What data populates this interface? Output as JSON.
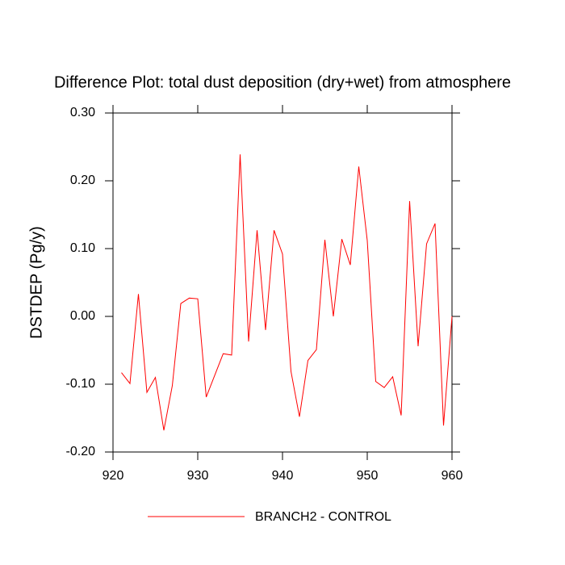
{
  "chart_data": {
    "type": "line",
    "title": "Difference Plot: total dust deposition (dry+wet) from atmosphere",
    "y_label": "DSTDEP  (Pg/y)",
    "x": [
      921,
      922,
      923,
      924,
      925,
      926,
      927,
      928,
      929,
      930,
      931,
      932,
      933,
      934,
      935,
      936,
      937,
      938,
      939,
      940,
      941,
      942,
      943,
      944,
      945,
      946,
      947,
      948,
      949,
      950,
      951,
      952,
      953,
      954,
      955,
      956,
      957,
      958,
      959,
      960
    ],
    "series": [
      {
        "name": "BRANCH2 - CONTROL",
        "color": "#ff0000",
        "values": [
          -0.083,
          -0.099,
          0.033,
          -0.112,
          -0.09,
          -0.168,
          -0.102,
          0.019,
          0.027,
          0.026,
          -0.119,
          -0.087,
          -0.055,
          -0.057,
          0.239,
          -0.037,
          0.127,
          -0.02,
          0.127,
          0.092,
          -0.081,
          -0.148,
          -0.065,
          -0.049,
          0.113,
          0.0,
          0.114,
          0.076,
          0.221,
          0.112,
          -0.096,
          -0.105,
          -0.089,
          -0.146,
          0.17,
          -0.044,
          0.107,
          0.137,
          -0.161,
          0.0
        ]
      }
    ],
    "xlim": [
      920,
      960
    ],
    "xticks": [
      920,
      930,
      940,
      950,
      960
    ],
    "ylim": [
      -0.2,
      0.3
    ],
    "yticks": [
      {
        "value": -0.2,
        "label": "-0.20"
      },
      {
        "value": -0.1,
        "label": "-0.10"
      },
      {
        "value": 0,
        "label": "0.00"
      },
      {
        "value": 0.1,
        "label": "0.10"
      },
      {
        "value": 0.2,
        "label": "0.20"
      },
      {
        "value": 0.3,
        "label": "0.30"
      }
    ],
    "legend": "bottom"
  }
}
